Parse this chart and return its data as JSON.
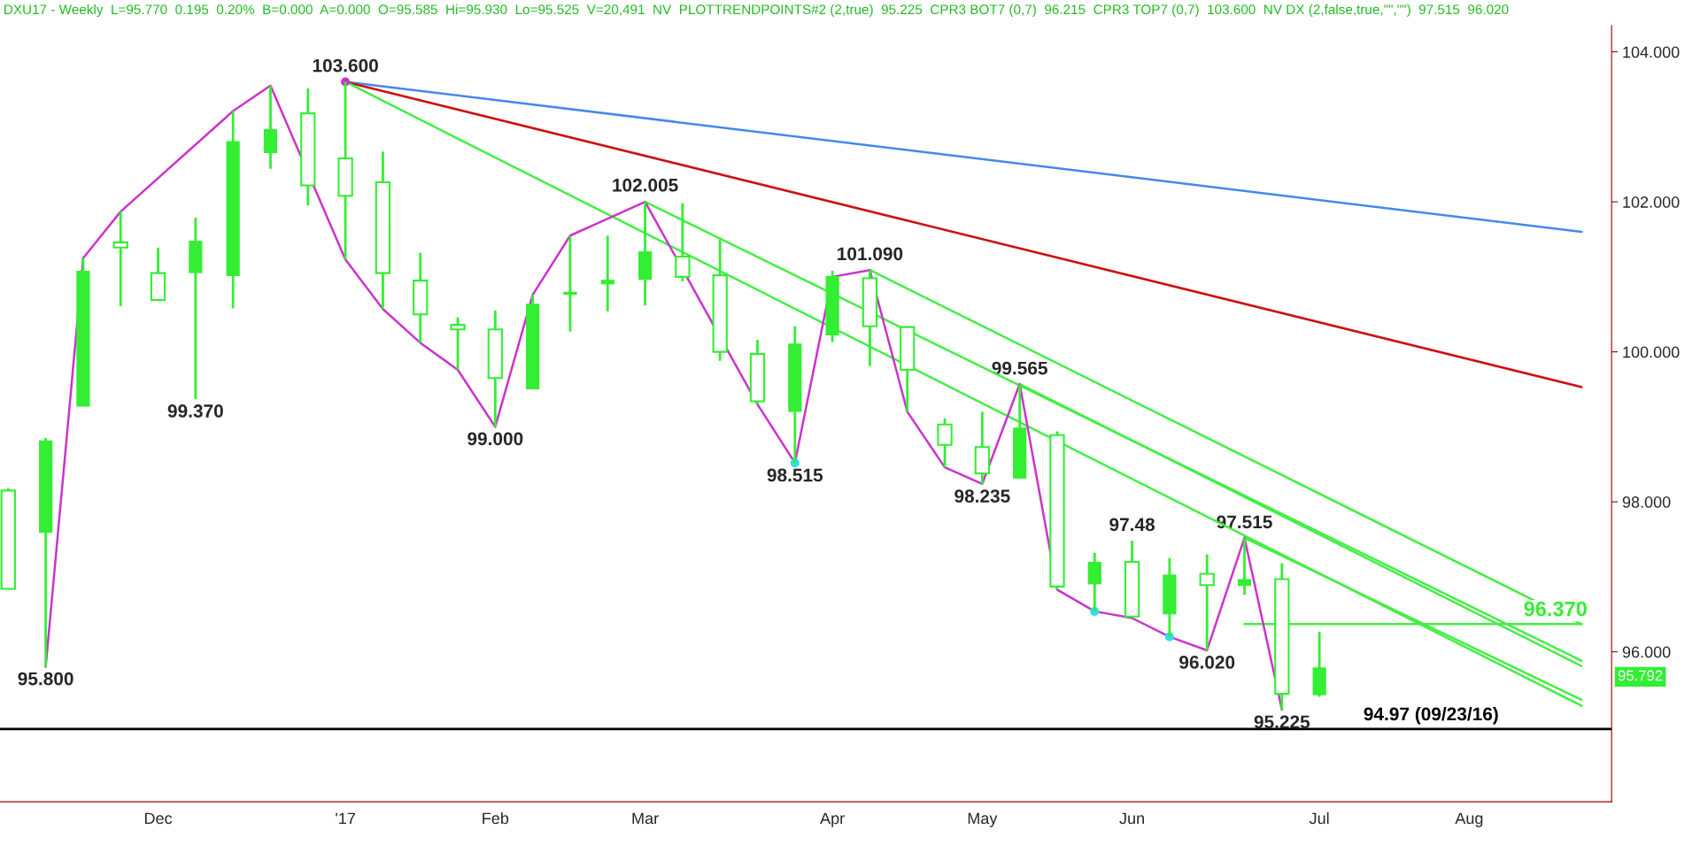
{
  "chart_data": {
    "type": "candlestick",
    "title": "DXU17 - Weekly  L=95.770  0.195  0.20%  B=0.000  A=0.000  O=95.585  Hi=95.930  Lo=95.525  V=20,491  NV  PLOTTRENDPOINTS#2 (2,true)  95.225  CPR3 BOT7 (0,7)  96.215  CPR3 TOP7 (0,7)  103.600  NV DX (2,false,true,\"\",\"\")  97.515  96.020",
    "categories": [
      null,
      null,
      null,
      null,
      "Dec",
      null,
      null,
      null,
      null,
      "'17",
      null,
      null,
      null,
      "Feb",
      null,
      null,
      null,
      "Mar",
      null,
      null,
      null,
      null,
      "Apr",
      null,
      null,
      null,
      "May",
      null,
      null,
      null,
      "Jun",
      null,
      null,
      null,
      null,
      "Jul",
      null,
      null,
      null,
      "Aug",
      null,
      null,
      null
    ],
    "ylim": [
      94.0,
      104.35
    ],
    "yticks": [
      {
        "value": 96,
        "label": "96.000"
      },
      {
        "value": 98,
        "label": "98.000"
      },
      {
        "value": 100,
        "label": "100.000"
      },
      {
        "value": 102,
        "label": "102.000"
      },
      {
        "value": 104,
        "label": "104.000"
      }
    ],
    "series": [
      {
        "type": "line",
        "color": "#4488ee",
        "values": [
          null,
          null,
          null,
          null,
          null,
          null,
          null,
          null,
          null,
          103.6,
          null,
          null,
          null,
          null,
          null,
          null,
          null,
          null,
          null,
          null,
          null,
          null,
          null,
          null,
          null,
          null,
          null,
          null,
          null,
          null,
          null,
          null,
          null,
          null,
          null,
          null,
          null,
          null,
          null,
          null,
          null,
          null,
          101.6
        ]
      },
      {
        "type": "line",
        "color": "#cc1111",
        "values": [
          null,
          null,
          null,
          null,
          null,
          null,
          null,
          null,
          null,
          103.6,
          null,
          null,
          null,
          null,
          null,
          null,
          null,
          null,
          null,
          null,
          null,
          null,
          null,
          null,
          null,
          null,
          null,
          null,
          null,
          null,
          null,
          null,
          null,
          null,
          null,
          null,
          null,
          null,
          null,
          null,
          null,
          null,
          99.53
        ]
      },
      {
        "type": "line",
        "color": "#44ee44",
        "values": [
          null,
          null,
          null,
          null,
          null,
          null,
          null,
          null,
          null,
          103.6,
          null,
          null,
          null,
          null,
          null,
          null,
          null,
          null,
          null,
          null,
          null,
          null,
          null,
          null,
          null,
          null,
          null,
          null,
          null,
          null,
          null,
          null,
          null,
          null,
          null,
          null,
          null,
          null,
          null,
          null,
          null,
          null,
          95.28
        ]
      },
      {
        "type": "line",
        "color": "#44ee44",
        "values": [
          null,
          null,
          null,
          null,
          null,
          null,
          null,
          null,
          null,
          null,
          null,
          null,
          null,
          null,
          null,
          null,
          null,
          102.0,
          null,
          null,
          null,
          null,
          null,
          null,
          null,
          null,
          null,
          null,
          null,
          null,
          null,
          null,
          null,
          null,
          null,
          null,
          null,
          null,
          null,
          null,
          null,
          null,
          95.88
        ]
      },
      {
        "type": "line",
        "color": "#44ee44",
        "values": [
          null,
          null,
          null,
          null,
          null,
          null,
          null,
          null,
          null,
          null,
          null,
          null,
          null,
          null,
          null,
          null,
          null,
          null,
          null,
          null,
          null,
          null,
          null,
          101.09,
          null,
          null,
          null,
          null,
          null,
          null,
          null,
          null,
          null,
          null,
          null,
          null,
          null,
          null,
          null,
          null,
          null,
          null,
          96.37
        ]
      },
      {
        "type": "line",
        "color": "#44ee44",
        "values": [
          null,
          null,
          null,
          null,
          null,
          null,
          null,
          null,
          null,
          null,
          null,
          null,
          null,
          null,
          null,
          null,
          null,
          null,
          null,
          null,
          null,
          null,
          null,
          null,
          null,
          null,
          null,
          99.57,
          null,
          null,
          null,
          null,
          null,
          null,
          null,
          null,
          null,
          null,
          null,
          null,
          null,
          null,
          95.81
        ]
      },
      {
        "type": "line",
        "color": "#44ee44",
        "values": [
          null,
          null,
          null,
          null,
          null,
          null,
          null,
          null,
          null,
          null,
          null,
          null,
          null,
          null,
          null,
          null,
          null,
          null,
          null,
          null,
          null,
          null,
          null,
          null,
          null,
          null,
          null,
          null,
          null,
          null,
          null,
          null,
          null,
          97.52,
          null,
          null,
          null,
          null,
          null,
          null,
          null,
          null,
          95.36
        ]
      },
      {
        "type": "line",
        "color": "#44ee44",
        "values": [
          null,
          null,
          null,
          null,
          null,
          null,
          null,
          null,
          null,
          null,
          null,
          null,
          null,
          null,
          null,
          null,
          null,
          null,
          null,
          null,
          null,
          null,
          null,
          null,
          null,
          null,
          null,
          null,
          null,
          null,
          null,
          null,
          null,
          96.37,
          null,
          null,
          null,
          null,
          null,
          null,
          null,
          null,
          96.37
        ]
      },
      {
        "type": "line",
        "color": "#cc33cc",
        "values": [
          null,
          95.8,
          101.25,
          101.87,
          null,
          null,
          103.21,
          103.55,
          null,
          101.23,
          100.57,
          100.12,
          99.76,
          99.0,
          100.76,
          101.55,
          null,
          102.0,
          null,
          null,
          99.3,
          98.52,
          101.0,
          101.09,
          99.2,
          98.46,
          98.24,
          99.57,
          96.83,
          96.54,
          96.45,
          96.2,
          96.02,
          97.52,
          95.23,
          null,
          null,
          null,
          null,
          null,
          null,
          null,
          null
        ]
      },
      {
        "color": "#33ee33",
        "ohlc": [
          [
            98.15,
            98.18,
            96.83,
            96.84
          ],
          [
            97.59,
            98.85,
            95.8,
            98.82
          ],
          [
            99.27,
            101.25,
            99.27,
            101.08
          ],
          [
            101.46,
            101.87,
            100.61,
            101.39
          ],
          [
            101.05,
            101.39,
            100.69,
            100.69
          ],
          [
            101.05,
            101.79,
            99.37,
            101.48
          ],
          [
            101.01,
            103.21,
            100.58,
            102.81
          ],
          [
            102.65,
            103.55,
            102.44,
            102.97
          ],
          [
            103.18,
            103.51,
            101.95,
            102.22
          ],
          [
            102.58,
            103.6,
            101.23,
            102.08
          ],
          [
            102.26,
            102.67,
            100.57,
            101.05
          ],
          [
            100.95,
            101.32,
            100.12,
            100.5
          ],
          [
            100.36,
            100.46,
            99.76,
            100.3
          ],
          [
            100.3,
            100.55,
            99.0,
            99.65
          ],
          [
            99.5,
            100.76,
            99.5,
            100.64
          ],
          [
            100.76,
            101.55,
            100.27,
            100.8
          ],
          [
            100.9,
            101.55,
            100.54,
            100.96
          ],
          [
            100.96,
            102.005,
            100.62,
            101.34
          ],
          [
            101.27,
            101.98,
            100.94,
            101.0
          ],
          [
            101.02,
            101.5,
            99.88,
            100.0
          ],
          [
            99.97,
            100.16,
            99.3,
            99.34
          ],
          [
            99.2,
            100.34,
            98.515,
            100.11
          ],
          [
            100.22,
            101.08,
            100.13,
            101.01
          ],
          [
            100.98,
            101.09,
            99.81,
            100.34
          ],
          [
            100.33,
            100.33,
            99.2,
            99.76
          ],
          [
            99.03,
            99.11,
            98.46,
            98.76
          ],
          [
            98.73,
            99.2,
            98.235,
            98.38
          ],
          [
            98.31,
            99.565,
            98.31,
            98.99
          ],
          [
            98.89,
            98.94,
            96.83,
            96.87
          ],
          [
            96.9,
            97.32,
            96.54,
            97.2
          ],
          [
            97.2,
            97.48,
            96.45,
            96.47
          ],
          [
            96.5,
            97.25,
            96.2,
            97.03
          ],
          [
            97.04,
            97.3,
            96.02,
            96.89
          ],
          [
            96.88,
            97.515,
            96.76,
            96.97
          ],
          [
            96.97,
            97.18,
            95.225,
            95.44
          ],
          [
            95.42,
            96.27,
            95.4,
            95.792
          ],
          null,
          null,
          null,
          null,
          null,
          null,
          null
        ],
        "value_labels": [
          null,
          "95.800",
          null,
          null,
          null,
          "99.370",
          null,
          null,
          null,
          "103.600",
          null,
          null,
          null,
          "99.000",
          null,
          null,
          null,
          "102.005",
          null,
          null,
          null,
          "98.515",
          null,
          "101.090",
          null,
          null,
          "98.235",
          "99.565",
          null,
          null,
          "97.48",
          null,
          "96.020",
          "97.515",
          "95.225",
          null,
          null,
          null,
          null,
          null,
          null,
          null,
          null
        ]
      },
      {
        "type": "scatter",
        "color": "#33ddee",
        "values": [
          null,
          null,
          null,
          null,
          null,
          null,
          null,
          null,
          null,
          null,
          null,
          null,
          null,
          null,
          null,
          null,
          null,
          null,
          null,
          null,
          null,
          98.52,
          null,
          null,
          null,
          null,
          null,
          null,
          null,
          96.54,
          null,
          96.2,
          null,
          null,
          null,
          null,
          null,
          null,
          null,
          null,
          null,
          null,
          null
        ]
      },
      {
        "type": "scatter",
        "color": "#cc33cc",
        "values": [
          null,
          null,
          null,
          null,
          null,
          null,
          null,
          null,
          null,
          103.6,
          null,
          null,
          null,
          null,
          null,
          null,
          null,
          null,
          null,
          null,
          null,
          null,
          null,
          null,
          null,
          null,
          null,
          null,
          null,
          null,
          null,
          null,
          null,
          null,
          null,
          null,
          null,
          null,
          null,
          null,
          null,
          null,
          null
        ]
      }
    ],
    "ref_lines": [
      {
        "axis": "y",
        "value": 94.97,
        "label": "94.97 (09/23/16)",
        "color": "#000000"
      }
    ],
    "annotations": [
      {
        "text": "96.370",
        "y": 96.37
      },
      "95.792"
    ]
  }
}
